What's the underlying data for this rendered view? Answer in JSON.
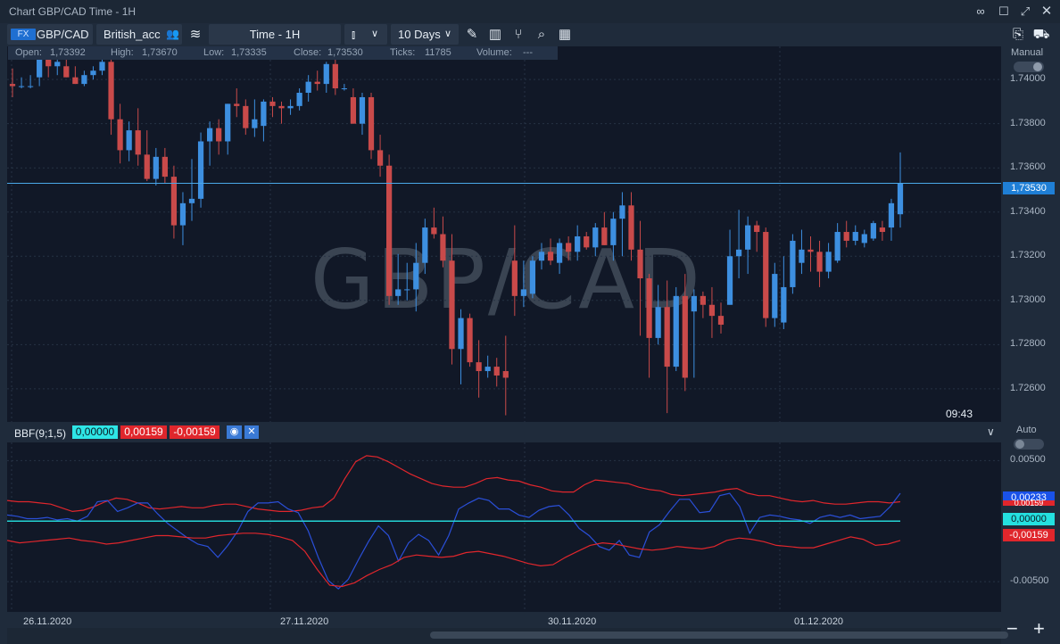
{
  "window": {
    "title": "Chart GBP/CAD Time - 1H"
  },
  "toolbar": {
    "instrument_badge": "FX",
    "instrument": "GBP/CAD",
    "account": "British_acc",
    "timeframe": "Time - 1H",
    "range": "10 Days"
  },
  "info": {
    "open_label": "Open:",
    "open": "1,73392",
    "high_label": "High:",
    "high": "1,73670",
    "low_label": "Low:",
    "low": "1,73335",
    "close_label": "Close:",
    "close": "1,73530",
    "ticks_label": "Ticks:",
    "ticks": "11785",
    "volume_label": "Volume:",
    "volume": "---"
  },
  "main_chart": {
    "watermark": "GBP/CAD",
    "mode_label": "Manual",
    "current_price": "1,73530",
    "time_label": "09:43",
    "y_ticks": [
      "1.74000",
      "1.73800",
      "1.73600",
      "1.73400",
      "1.73200",
      "1.73000",
      "1.72800",
      "1.72600"
    ]
  },
  "indicator": {
    "name": "BBF(9;1,5)",
    "value_center": "0,00000",
    "value_upper": "0,00159",
    "value_lower": "-0,00159",
    "mode_label": "Auto",
    "y_ticks": [
      "0.00500",
      "-0.00500"
    ],
    "tag_blue": "0,00233",
    "tag_red_upper": "0,00159",
    "tag_cyan": "0,00000",
    "tag_red_lower": "-0,00159"
  },
  "x_axis": {
    "labels": [
      "26.11.2020",
      "27.11.2020",
      "30.11.2020",
      "01.12.2020"
    ]
  },
  "zoom": {
    "minus": "−",
    "plus": "+"
  },
  "colors": {
    "bull": "#3d8fe0",
    "bear": "#c94a4a",
    "price_line": "#4aa8e8",
    "band": "#e0262c",
    "osc": "#2a4fd8",
    "zero": "#24d4d4"
  },
  "chart_data": [
    {
      "type": "candlestick",
      "title": "GBP/CAD",
      "x_labels": [
        "26.11.2020",
        "27.11.2020",
        "30.11.2020",
        "01.12.2020"
      ],
      "ylim": [
        1.7245,
        1.7415
      ],
      "y_ticks": [
        1.74,
        1.738,
        1.736,
        1.734,
        1.732,
        1.73,
        1.728,
        1.726
      ],
      "current_price": 1.7353,
      "candles": [
        {
          "o": 1.7398,
          "h": 1.7405,
          "l": 1.7392,
          "c": 1.7397
        },
        {
          "o": 1.7397,
          "h": 1.7401,
          "l": 1.7396,
          "c": 1.7397
        },
        {
          "o": 1.7397,
          "h": 1.7402,
          "l": 1.7396,
          "c": 1.7397
        },
        {
          "o": 1.7401,
          "h": 1.7411,
          "l": 1.7397,
          "c": 1.741
        },
        {
          "o": 1.741,
          "h": 1.7414,
          "l": 1.7401,
          "c": 1.7406
        },
        {
          "o": 1.7406,
          "h": 1.7409,
          "l": 1.7402,
          "c": 1.7408
        },
        {
          "o": 1.7406,
          "h": 1.741,
          "l": 1.7401,
          "c": 1.7401
        },
        {
          "o": 1.7401,
          "h": 1.7406,
          "l": 1.7398,
          "c": 1.7398
        },
        {
          "o": 1.7398,
          "h": 1.7404,
          "l": 1.7397,
          "c": 1.7402
        },
        {
          "o": 1.7402,
          "h": 1.7406,
          "l": 1.74,
          "c": 1.7404
        },
        {
          "o": 1.7404,
          "h": 1.741,
          "l": 1.7402,
          "c": 1.7408
        },
        {
          "o": 1.7408,
          "h": 1.741,
          "l": 1.7375,
          "c": 1.7382
        },
        {
          "o": 1.7382,
          "h": 1.7389,
          "l": 1.7362,
          "c": 1.7368
        },
        {
          "o": 1.7368,
          "h": 1.7381,
          "l": 1.7363,
          "c": 1.7377
        },
        {
          "o": 1.7377,
          "h": 1.7387,
          "l": 1.7361,
          "c": 1.7366
        },
        {
          "o": 1.7366,
          "h": 1.7377,
          "l": 1.7354,
          "c": 1.7355
        },
        {
          "o": 1.7355,
          "h": 1.7369,
          "l": 1.7352,
          "c": 1.7365
        },
        {
          "o": 1.7365,
          "h": 1.7369,
          "l": 1.7353,
          "c": 1.7356
        },
        {
          "o": 1.7356,
          "h": 1.7361,
          "l": 1.7328,
          "c": 1.7334
        },
        {
          "o": 1.7334,
          "h": 1.7349,
          "l": 1.7325,
          "c": 1.7344
        },
        {
          "o": 1.7344,
          "h": 1.7364,
          "l": 1.7336,
          "c": 1.7346
        },
        {
          "o": 1.7346,
          "h": 1.7376,
          "l": 1.7342,
          "c": 1.7372
        },
        {
          "o": 1.7372,
          "h": 1.7381,
          "l": 1.7361,
          "c": 1.7378
        },
        {
          "o": 1.7378,
          "h": 1.7382,
          "l": 1.7366,
          "c": 1.7372
        },
        {
          "o": 1.7372,
          "h": 1.7389,
          "l": 1.7366,
          "c": 1.7389
        },
        {
          "o": 1.7389,
          "h": 1.7396,
          "l": 1.7383,
          "c": 1.7388
        },
        {
          "o": 1.7388,
          "h": 1.7391,
          "l": 1.7375,
          "c": 1.7378
        },
        {
          "o": 1.7378,
          "h": 1.7391,
          "l": 1.7374,
          "c": 1.7382
        },
        {
          "o": 1.7379,
          "h": 1.7391,
          "l": 1.7372,
          "c": 1.739
        },
        {
          "o": 1.739,
          "h": 1.7392,
          "l": 1.7383,
          "c": 1.7388
        },
        {
          "o": 1.7388,
          "h": 1.739,
          "l": 1.738,
          "c": 1.7387
        },
        {
          "o": 1.7387,
          "h": 1.7391,
          "l": 1.7384,
          "c": 1.7388
        },
        {
          "o": 1.7388,
          "h": 1.7396,
          "l": 1.7386,
          "c": 1.7394
        },
        {
          "o": 1.7394,
          "h": 1.7402,
          "l": 1.739,
          "c": 1.7399
        },
        {
          "o": 1.7399,
          "h": 1.7404,
          "l": 1.7395,
          "c": 1.7398
        },
        {
          "o": 1.7398,
          "h": 1.7408,
          "l": 1.7394,
          "c": 1.7407
        },
        {
          "o": 1.7407,
          "h": 1.741,
          "l": 1.7393,
          "c": 1.7396
        },
        {
          "o": 1.7396,
          "h": 1.7398,
          "l": 1.7395,
          "c": 1.7396
        },
        {
          "o": 1.7392,
          "h": 1.7396,
          "l": 1.738,
          "c": 1.738
        },
        {
          "o": 1.738,
          "h": 1.7394,
          "l": 1.7375,
          "c": 1.7392
        },
        {
          "o": 1.7392,
          "h": 1.7394,
          "l": 1.7364,
          "c": 1.7368
        },
        {
          "o": 1.7368,
          "h": 1.7375,
          "l": 1.7356,
          "c": 1.7361
        },
        {
          "o": 1.7361,
          "h": 1.7366,
          "l": 1.7298,
          "c": 1.7302
        },
        {
          "o": 1.7302,
          "h": 1.7321,
          "l": 1.7298,
          "c": 1.7305
        },
        {
          "o": 1.7305,
          "h": 1.7317,
          "l": 1.73,
          "c": 1.7305
        },
        {
          "o": 1.7305,
          "h": 1.7326,
          "l": 1.7295,
          "c": 1.7317
        },
        {
          "o": 1.7317,
          "h": 1.7337,
          "l": 1.7312,
          "c": 1.7333
        },
        {
          "o": 1.7333,
          "h": 1.7342,
          "l": 1.7328,
          "c": 1.733
        },
        {
          "o": 1.733,
          "h": 1.7338,
          "l": 1.7315,
          "c": 1.7318
        },
        {
          "o": 1.7318,
          "h": 1.733,
          "l": 1.7271,
          "c": 1.7278
        },
        {
          "o": 1.7278,
          "h": 1.7296,
          "l": 1.7262,
          "c": 1.7292
        },
        {
          "o": 1.7292,
          "h": 1.7294,
          "l": 1.727,
          "c": 1.7272
        },
        {
          "o": 1.7272,
          "h": 1.7282,
          "l": 1.7256,
          "c": 1.7268
        },
        {
          "o": 1.7268,
          "h": 1.7275,
          "l": 1.7265,
          "c": 1.727
        },
        {
          "o": 1.727,
          "h": 1.7274,
          "l": 1.7261,
          "c": 1.7266
        },
        {
          "o": 1.7268,
          "h": 1.7284,
          "l": 1.7248,
          "c": 1.7265
        },
        {
          "o": 1.7318,
          "h": 1.7334,
          "l": 1.7293,
          "c": 1.7302
        },
        {
          "o": 1.7302,
          "h": 1.7318,
          "l": 1.7297,
          "c": 1.7305
        },
        {
          "o": 1.7303,
          "h": 1.732,
          "l": 1.7301,
          "c": 1.7318
        },
        {
          "o": 1.7318,
          "h": 1.7326,
          "l": 1.7314,
          "c": 1.7322
        },
        {
          "o": 1.7322,
          "h": 1.7328,
          "l": 1.7316,
          "c": 1.7318
        },
        {
          "o": 1.7317,
          "h": 1.7328,
          "l": 1.7312,
          "c": 1.7326
        },
        {
          "o": 1.7326,
          "h": 1.7329,
          "l": 1.7318,
          "c": 1.7322
        },
        {
          "o": 1.7322,
          "h": 1.7334,
          "l": 1.7318,
          "c": 1.7329
        },
        {
          "o": 1.7329,
          "h": 1.7331,
          "l": 1.7323,
          "c": 1.7324
        },
        {
          "o": 1.7324,
          "h": 1.7335,
          "l": 1.732,
          "c": 1.7333
        },
        {
          "o": 1.7333,
          "h": 1.734,
          "l": 1.7325,
          "c": 1.7325
        },
        {
          "o": 1.7325,
          "h": 1.734,
          "l": 1.7318,
          "c": 1.7337
        },
        {
          "o": 1.7337,
          "h": 1.7349,
          "l": 1.732,
          "c": 1.7343
        },
        {
          "o": 1.7343,
          "h": 1.7349,
          "l": 1.7318,
          "c": 1.7323
        },
        {
          "o": 1.7323,
          "h": 1.7336,
          "l": 1.7284,
          "c": 1.731
        },
        {
          "o": 1.731,
          "h": 1.7312,
          "l": 1.7265,
          "c": 1.7283
        },
        {
          "o": 1.7283,
          "h": 1.7307,
          "l": 1.728,
          "c": 1.7297
        },
        {
          "o": 1.7297,
          "h": 1.7309,
          "l": 1.7249,
          "c": 1.727
        },
        {
          "o": 1.727,
          "h": 1.7306,
          "l": 1.7268,
          "c": 1.7302
        },
        {
          "o": 1.7302,
          "h": 1.7312,
          "l": 1.7259,
          "c": 1.7265
        },
        {
          "o": 1.7295,
          "h": 1.7305,
          "l": 1.7265,
          "c": 1.7302
        },
        {
          "o": 1.7302,
          "h": 1.7304,
          "l": 1.7292,
          "c": 1.7298
        },
        {
          "o": 1.7298,
          "h": 1.7306,
          "l": 1.7283,
          "c": 1.7293
        },
        {
          "o": 1.7293,
          "h": 1.7299,
          "l": 1.7285,
          "c": 1.7289
        },
        {
          "o": 1.7298,
          "h": 1.7332,
          "l": 1.7298,
          "c": 1.732
        },
        {
          "o": 1.732,
          "h": 1.7341,
          "l": 1.731,
          "c": 1.7323
        },
        {
          "o": 1.7323,
          "h": 1.7338,
          "l": 1.7312,
          "c": 1.7334
        },
        {
          "o": 1.7334,
          "h": 1.7336,
          "l": 1.7322,
          "c": 1.7331
        },
        {
          "o": 1.7331,
          "h": 1.7333,
          "l": 1.7288,
          "c": 1.7292
        },
        {
          "o": 1.7292,
          "h": 1.7317,
          "l": 1.7288,
          "c": 1.7312
        },
        {
          "o": 1.729,
          "h": 1.732,
          "l": 1.7287,
          "c": 1.7306
        },
        {
          "o": 1.7306,
          "h": 1.733,
          "l": 1.7303,
          "c": 1.7327
        },
        {
          "o": 1.7317,
          "h": 1.7332,
          "l": 1.7312,
          "c": 1.7323
        },
        {
          "o": 1.7323,
          "h": 1.7329,
          "l": 1.7313,
          "c": 1.7322
        },
        {
          "o": 1.7322,
          "h": 1.7327,
          "l": 1.7306,
          "c": 1.7313
        },
        {
          "o": 1.7313,
          "h": 1.7326,
          "l": 1.731,
          "c": 1.7322
        },
        {
          "o": 1.7318,
          "h": 1.7335,
          "l": 1.7317,
          "c": 1.7331
        },
        {
          "o": 1.7331,
          "h": 1.7336,
          "l": 1.7324,
          "c": 1.7327
        },
        {
          "o": 1.7327,
          "h": 1.7334,
          "l": 1.7325,
          "c": 1.7331
        },
        {
          "o": 1.7326,
          "h": 1.7332,
          "l": 1.7324,
          "c": 1.733
        },
        {
          "o": 1.7328,
          "h": 1.7336,
          "l": 1.7327,
          "c": 1.7335
        },
        {
          "o": 1.7333,
          "h": 1.7336,
          "l": 1.7327,
          "c": 1.7331
        },
        {
          "o": 1.7333,
          "h": 1.7346,
          "l": 1.7327,
          "c": 1.7344
        },
        {
          "o": 1.7339,
          "h": 1.7367,
          "l": 1.7333,
          "c": 1.7353
        }
      ]
    },
    {
      "type": "line",
      "title": "BBF(9;1,5)",
      "ylim": [
        -0.0075,
        0.0065
      ],
      "y_ticks": [
        0.005,
        -0.005
      ],
      "series": [
        {
          "name": "upper",
          "values": [
            0.0017,
            0.0016,
            0.0016,
            0.0015,
            0.0014,
            0.0011,
            0.0008,
            0.0009,
            0.0012,
            0.0016,
            0.0019,
            0.0018,
            0.0015,
            0.0011,
            0.001,
            0.0011,
            0.0012,
            0.0011,
            0.0011,
            0.0013,
            0.0014,
            0.0014,
            0.0012,
            0.001,
            0.0009,
            0.0008,
            0.0008,
            0.0009,
            0.0011,
            0.0012,
            0.0019,
            0.0035,
            0.0049,
            0.0054,
            0.0053,
            0.0049,
            0.0044,
            0.0039,
            0.0035,
            0.0031,
            0.0029,
            0.0028,
            0.0028,
            0.0031,
            0.0035,
            0.0036,
            0.0034,
            0.0033,
            0.003,
            0.0028,
            0.0025,
            0.0024,
            0.0024,
            0.003,
            0.0034,
            0.0033,
            0.0032,
            0.0031,
            0.0028,
            0.0026,
            0.0025,
            0.0022,
            0.0021,
            0.0022,
            0.0023,
            0.0024,
            0.0026,
            0.0027,
            0.0023,
            0.0021,
            0.0021,
            0.0019,
            0.0017,
            0.0016,
            0.0017,
            0.0015,
            0.0014,
            0.0014,
            0.0015,
            0.0016,
            0.0016,
            0.0015,
            0.0016
          ]
        },
        {
          "name": "oscillator",
          "values": [
            0.0005,
            0.0004,
            0.0002,
            0.0002,
            0.0003,
            0.0001,
            0.0002,
            0.0,
            0.0004,
            0.0016,
            0.0017,
            0.0008,
            0.0011,
            0.0015,
            0.0015,
            0.0006,
            -0.0002,
            -0.0008,
            -0.0014,
            -0.0019,
            -0.0021,
            -0.003,
            -0.002,
            -0.0008,
            0.0008,
            0.0015,
            0.0015,
            0.0016,
            0.001,
            0.0007,
            -0.0008,
            -0.003,
            -0.0049,
            -0.0056,
            -0.0048,
            -0.0032,
            -0.0017,
            -0.0004,
            -0.0012,
            -0.0033,
            -0.0018,
            -0.0011,
            -0.0016,
            -0.0028,
            -0.0012,
            0.001,
            0.0015,
            0.0019,
            0.0017,
            0.001,
            0.001,
            0.0005,
            0.0003,
            0.0009,
            0.0012,
            0.0013,
            0.0005,
            -0.0006,
            -0.0012,
            -0.0021,
            -0.0024,
            -0.0016,
            -0.0028,
            -0.003,
            -0.0009,
            -0.0003,
            0.0008,
            0.0018,
            0.0018,
            0.0007,
            0.0008,
            0.0021,
            0.0023,
            0.0012,
            -0.001,
            0.0003,
            0.0005,
            0.0004,
            0.0002,
            0.0001,
            -0.0002,
            0.0003,
            0.0005,
            0.0003,
            0.0005,
            0.0002,
            0.0003,
            0.0004,
            0.0012,
            0.0023
          ]
        },
        {
          "name": "lower",
          "values": [
            -0.0016,
            -0.0018,
            -0.0017,
            -0.0016,
            -0.0015,
            -0.0014,
            -0.0016,
            -0.0017,
            -0.0019,
            -0.0018,
            -0.0016,
            -0.0014,
            -0.0012,
            -0.0012,
            -0.0013,
            -0.0014,
            -0.0014,
            -0.0012,
            -0.0011,
            -0.001,
            -0.001,
            -0.0011,
            -0.0013,
            -0.0016,
            -0.0025,
            -0.004,
            -0.0053,
            -0.0054,
            -0.0051,
            -0.0045,
            -0.004,
            -0.0036,
            -0.003,
            -0.0028,
            -0.0029,
            -0.003,
            -0.0029,
            -0.0026,
            -0.0025,
            -0.0027,
            -0.0029,
            -0.0032,
            -0.0035,
            -0.0037,
            -0.0036,
            -0.003,
            -0.0025,
            -0.002,
            -0.0018,
            -0.0019,
            -0.0021,
            -0.0023,
            -0.0024,
            -0.0023,
            -0.0021,
            -0.0022,
            -0.0023,
            -0.0021,
            -0.0016,
            -0.0014,
            -0.0015,
            -0.0017,
            -0.002,
            -0.0021,
            -0.0022,
            -0.0022,
            -0.0019,
            -0.0016,
            -0.0013,
            -0.0015,
            -0.002,
            -0.0019,
            -0.0016
          ]
        },
        {
          "name": "zero",
          "values": [
            0,
            0
          ]
        }
      ]
    }
  ]
}
